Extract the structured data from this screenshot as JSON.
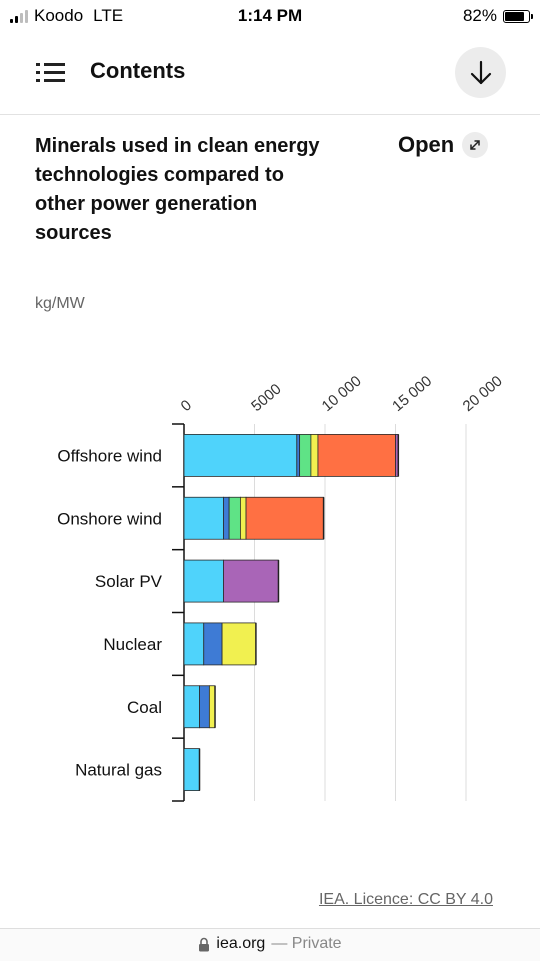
{
  "status_bar": {
    "carrier": "Koodo",
    "network": "LTE",
    "time": "1:14 PM",
    "battery": "82%",
    "battery_level": 0.82,
    "signal_bars": 2
  },
  "header": {
    "title": "Contents",
    "menu_icon": "list-icon",
    "download_icon": "arrow-down-icon"
  },
  "figure": {
    "title": "Minerals used in clean energy technologies compared to other power generation sources",
    "open_label": "Open",
    "open_icon": "expand-icon",
    "unit": "kg/MW",
    "licence": "IEA. Licence: CC BY 4.0"
  },
  "chart_data": {
    "type": "bar",
    "orientation": "horizontal",
    "stacked": true,
    "categories": [
      "Offshore wind",
      "Onshore wind",
      "Solar PV",
      "Nuclear",
      "Coal",
      "Natural gas"
    ],
    "x_ticks": [
      "0",
      "5000",
      "10 000",
      "15 000",
      "20 000"
    ],
    "xlim": [
      0,
      20000
    ],
    "grid": true,
    "legend": "none",
    "series": [
      {
        "color": "#4fd3fb",
        "values": [
          8000,
          2800,
          2800,
          1400,
          1100,
          1100
        ]
      },
      {
        "color": "#3e7bd5",
        "values": [
          200,
          400,
          0,
          1300,
          700,
          0
        ]
      },
      {
        "color": "#5fe386",
        "values": [
          800,
          800,
          0,
          0,
          0,
          0
        ]
      },
      {
        "color": "#f1f050",
        "values": [
          500,
          400,
          0,
          2400,
          400,
          0
        ]
      },
      {
        "color": "#ff7043",
        "values": [
          5500,
          5500,
          0,
          0,
          0,
          0
        ]
      },
      {
        "color": "#a965b7",
        "values": [
          200,
          0,
          3900,
          0,
          0,
          0
        ]
      }
    ]
  },
  "browser": {
    "url": "iea.org",
    "privacy": "— Private",
    "lock_icon": "lock-icon"
  }
}
